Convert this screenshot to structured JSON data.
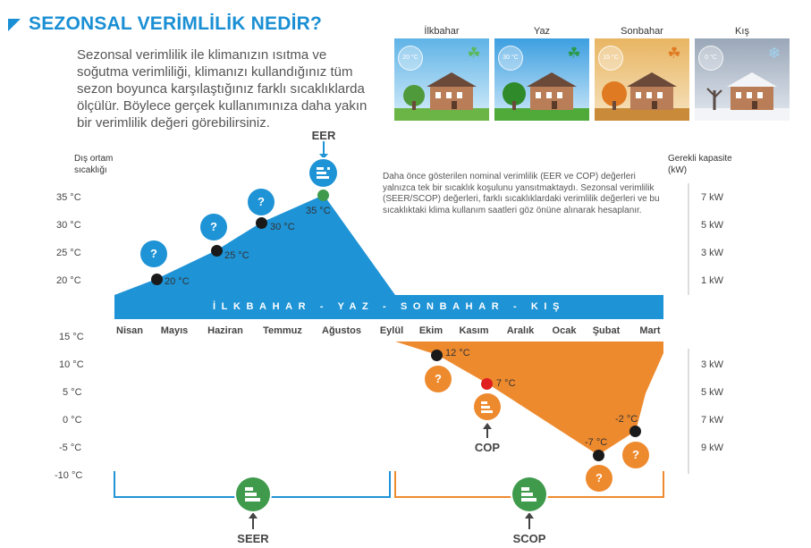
{
  "header": {
    "title": "SEZONSAL VERİMLİLİK NEDİR?",
    "intro": "Sezonsal verimlilik ile klimanızın ısıtma ve soğutma verimliliği, klimanızı kullandığınız tüm sezon boyunca karşılaştığınız farklı sıcaklıklarda ölçülür. Böylece gerçek kullanımınıza daha yakın bir verimlilik değeri görebilirsiniz."
  },
  "seasons": [
    {
      "label": "İlkbahar",
      "temp": "20 °C",
      "icon": "leaf-icon",
      "color": "#5bb85d"
    },
    {
      "label": "Yaz",
      "temp": "30 °C",
      "icon": "leaf-icon",
      "color": "#2a9a4a"
    },
    {
      "label": "Sonbahar",
      "temp": "15 °C",
      "icon": "maple-leaf-icon",
      "color": "#e07a22"
    },
    {
      "label": "Kış",
      "temp": "0 °C",
      "icon": "snowflake-icon",
      "color": "#9fd3f0"
    }
  ],
  "axes": {
    "left_title": "Dış ortam sıcaklığı",
    "right_title": "Gerekli kapasite (kW)",
    "cooling_temps": [
      "35 °C",
      "30 °C",
      "25 °C",
      "20 °C"
    ],
    "heating_temps": [
      "15 °C",
      "10 °C",
      "5 °C",
      "0 °C",
      "-5 °C",
      "-10 °C"
    ],
    "cooling_kw": [
      "7 kW",
      "5 kW",
      "3 kW",
      "1 kW"
    ],
    "heating_kw": [
      "3 kW",
      "5 kW",
      "7 kW",
      "9 kW"
    ]
  },
  "note": "Daha önce gösterilen nominal verimlilik (EER ve COP) değerleri yalnızca tek bir sıcaklık koşulunu yansıtmaktaydı. Sezonsal verimlilik (SEER/SCOP) değerleri, farklı sıcaklıklardaki verimlilik değerleri ve bu sıcaklıktaki klima kullanım saatleri göz önüne alınarak hesaplanır.",
  "band_text": "İLKBAHAR - YAZ - SONBAHAR - KIŞ",
  "months": [
    "Nisan",
    "Mayıs",
    "Haziran",
    "Temmuz",
    "Ağustos",
    "Eylül",
    "Ekim",
    "Kasım",
    "Aralık",
    "Ocak",
    "Şubat",
    "Mart"
  ],
  "cooling_points": [
    {
      "label": "20 °C",
      "value": 20,
      "question": "?"
    },
    {
      "label": "25 °C",
      "value": 25,
      "question": "?"
    },
    {
      "label": "30 °C",
      "value": 30,
      "question": "?"
    },
    {
      "label": "35 °C",
      "value": 35,
      "question": ""
    }
  ],
  "heating_points": [
    {
      "label": "12 °C",
      "value": 12,
      "question": "?"
    },
    {
      "label": "7 °C",
      "value": 7,
      "question": ""
    },
    {
      "label": "-7 °C",
      "value": -7,
      "question": "?"
    },
    {
      "label": "-2 °C",
      "value": -2,
      "question": "?"
    }
  ],
  "labels": {
    "eer": "EER",
    "cop": "COP",
    "seer": "SEER",
    "scop": "SCOP"
  },
  "colors": {
    "blue": "#1e93d6",
    "orange": "#ee8a2e",
    "green_point": "#3f9a4c",
    "red_point": "#e02020",
    "dark_point": "#1a1a1a"
  }
}
